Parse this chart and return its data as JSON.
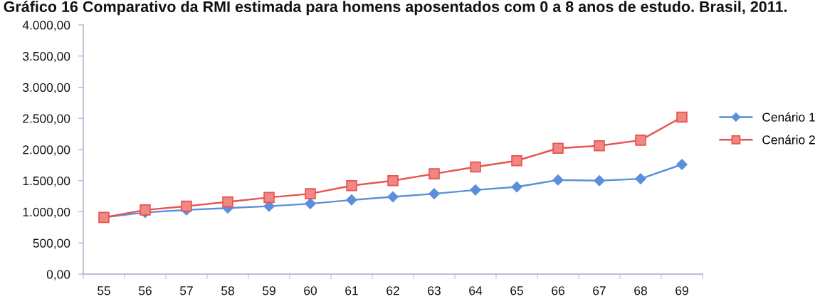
{
  "chart_data": {
    "type": "line",
    "title": "Gráfico 16 Comparativo da RMI estimada para homens aposentados com 0 a 8 anos de estudo. Brasil, 2011.",
    "categories": [
      "55",
      "56",
      "57",
      "58",
      "59",
      "60",
      "61",
      "62",
      "63",
      "64",
      "65",
      "66",
      "67",
      "68",
      "69"
    ],
    "series": [
      {
        "name": "Cenário 1",
        "color": "#5b8fdc",
        "marker": "diamond",
        "values": [
          910,
          990,
          1030,
          1060,
          1090,
          1130,
          1190,
          1240,
          1290,
          1350,
          1400,
          1510,
          1500,
          1530,
          1760
        ]
      },
      {
        "name": "Cenário 2",
        "color": "#e8534f",
        "marker": "square",
        "values": [
          910,
          1030,
          1090,
          1160,
          1230,
          1290,
          1420,
          1500,
          1610,
          1720,
          1820,
          2020,
          2060,
          2150,
          2520
        ]
      }
    ],
    "ylim": [
      0,
      4000
    ],
    "yticks": [
      {
        "value": 0,
        "label": "0,00"
      },
      {
        "value": 500,
        "label": "500,00"
      },
      {
        "value": 1000,
        "label": "1.000,00"
      },
      {
        "value": 1500,
        "label": "1.500,00"
      },
      {
        "value": 2000,
        "label": "2.000,00"
      },
      {
        "value": 2500,
        "label": "2.500,00"
      },
      {
        "value": 3000,
        "label": "3.000,00"
      },
      {
        "value": 3500,
        "label": "3.500,00"
      },
      {
        "value": 4000,
        "label": "4.000,00"
      }
    ],
    "grid": false,
    "legend": "right",
    "line_style": "solid"
  }
}
